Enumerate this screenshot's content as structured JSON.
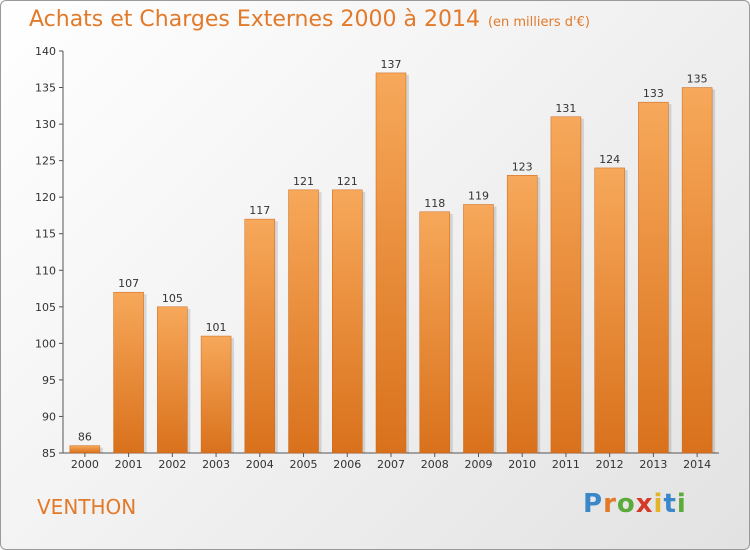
{
  "title": "Achats et Charges Externes 2000 à 2014",
  "unit": "(en milliers d'€)",
  "commune": "VENTHON",
  "logo": {
    "letters": [
      "P",
      "r",
      "o",
      "x",
      "i",
      "t",
      "i"
    ],
    "colors": [
      "#3a87c9",
      "#e27a2a",
      "#5aab3a",
      "#d43a2a",
      "#e2b42a",
      "#3a87c9",
      "#5aab3a"
    ]
  },
  "colors": {
    "bar_top": "#f7a85a",
    "bar_bottom": "#d9711c",
    "accent": "#e27a2a"
  },
  "chart_data": {
    "type": "bar",
    "categories": [
      "2000",
      "2001",
      "2002",
      "2003",
      "2004",
      "2005",
      "2006",
      "2007",
      "2008",
      "2009",
      "2010",
      "2011",
      "2012",
      "2013",
      "2014"
    ],
    "values": [
      86,
      107,
      105,
      101,
      117,
      121,
      121,
      137,
      118,
      119,
      123,
      131,
      124,
      133,
      135
    ],
    "ylim": [
      85,
      140
    ],
    "yticks": [
      85,
      90,
      95,
      100,
      105,
      110,
      115,
      120,
      125,
      130,
      135,
      140
    ],
    "grid": false,
    "xlabel": "",
    "ylabel": ""
  }
}
